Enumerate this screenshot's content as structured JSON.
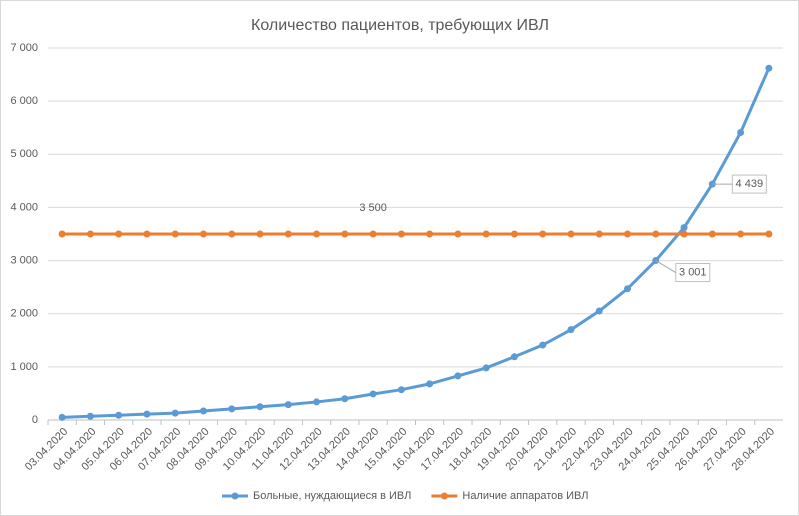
{
  "chart_data": {
    "type": "line",
    "title": "Количество пациентов, требующих ИВЛ",
    "categories": [
      "03.04.2020",
      "04.04.2020",
      "05.04.2020",
      "06.04.2020",
      "07.04.2020",
      "08.04.2020",
      "09.04.2020",
      "10.04.2020",
      "11.04.2020",
      "12.04.2020",
      "13.04.2020",
      "14.04.2020",
      "15.04.2020",
      "16.04.2020",
      "17.04.2020",
      "18.04.2020",
      "19.04.2020",
      "20.04.2020",
      "21.04.2020",
      "22.04.2020",
      "23.04.2020",
      "24.04.2020",
      "25.04.2020",
      "26.04.2020",
      "27.04.2020",
      "28.04.2020"
    ],
    "series": [
      {
        "name": "Больные, нуждающиеся в ИВЛ",
        "color": "#5b9bd5",
        "values": [
          50,
          70,
          90,
          110,
          130,
          170,
          210,
          250,
          290,
          340,
          400,
          490,
          570,
          680,
          830,
          980,
          1190,
          1410,
          1700,
          2050,
          2470,
          3001,
          3620,
          4439,
          5410,
          6620
        ],
        "value_labels": [
          null,
          null,
          null,
          null,
          null,
          null,
          null,
          null,
          null,
          null,
          null,
          null,
          null,
          null,
          null,
          null,
          null,
          null,
          null,
          null,
          null,
          "3 001",
          null,
          "4 439",
          null,
          null
        ]
      },
      {
        "name": "Наличие аппаратов ИВЛ",
        "color": "#ed7d31",
        "values": [
          3500,
          3500,
          3500,
          3500,
          3500,
          3500,
          3500,
          3500,
          3500,
          3500,
          3500,
          3500,
          3500,
          3500,
          3500,
          3500,
          3500,
          3500,
          3500,
          3500,
          3500,
          3500,
          3500,
          3500,
          3500,
          3500
        ],
        "value_labels": [
          null,
          null,
          null,
          null,
          null,
          null,
          null,
          null,
          null,
          null,
          null,
          "3 500",
          null,
          null,
          null,
          null,
          null,
          null,
          null,
          null,
          null,
          null,
          null,
          null,
          null,
          null
        ]
      }
    ],
    "ylim": [
      0,
      7000
    ],
    "yticks": [
      0,
      {
        "value": 1000,
        "label": "1 000"
      },
      {
        "value": 2000,
        "label": "2 000"
      },
      {
        "value": 3000,
        "label": "3 000"
      },
      {
        "value": 4000,
        "label": "4 000"
      },
      {
        "value": 5000,
        "label": "5 000"
      },
      {
        "value": 6000,
        "label": "6 000"
      },
      {
        "value": 7000,
        "label": "7 000"
      }
    ],
    "grid": true,
    "legend": "bottom"
  }
}
